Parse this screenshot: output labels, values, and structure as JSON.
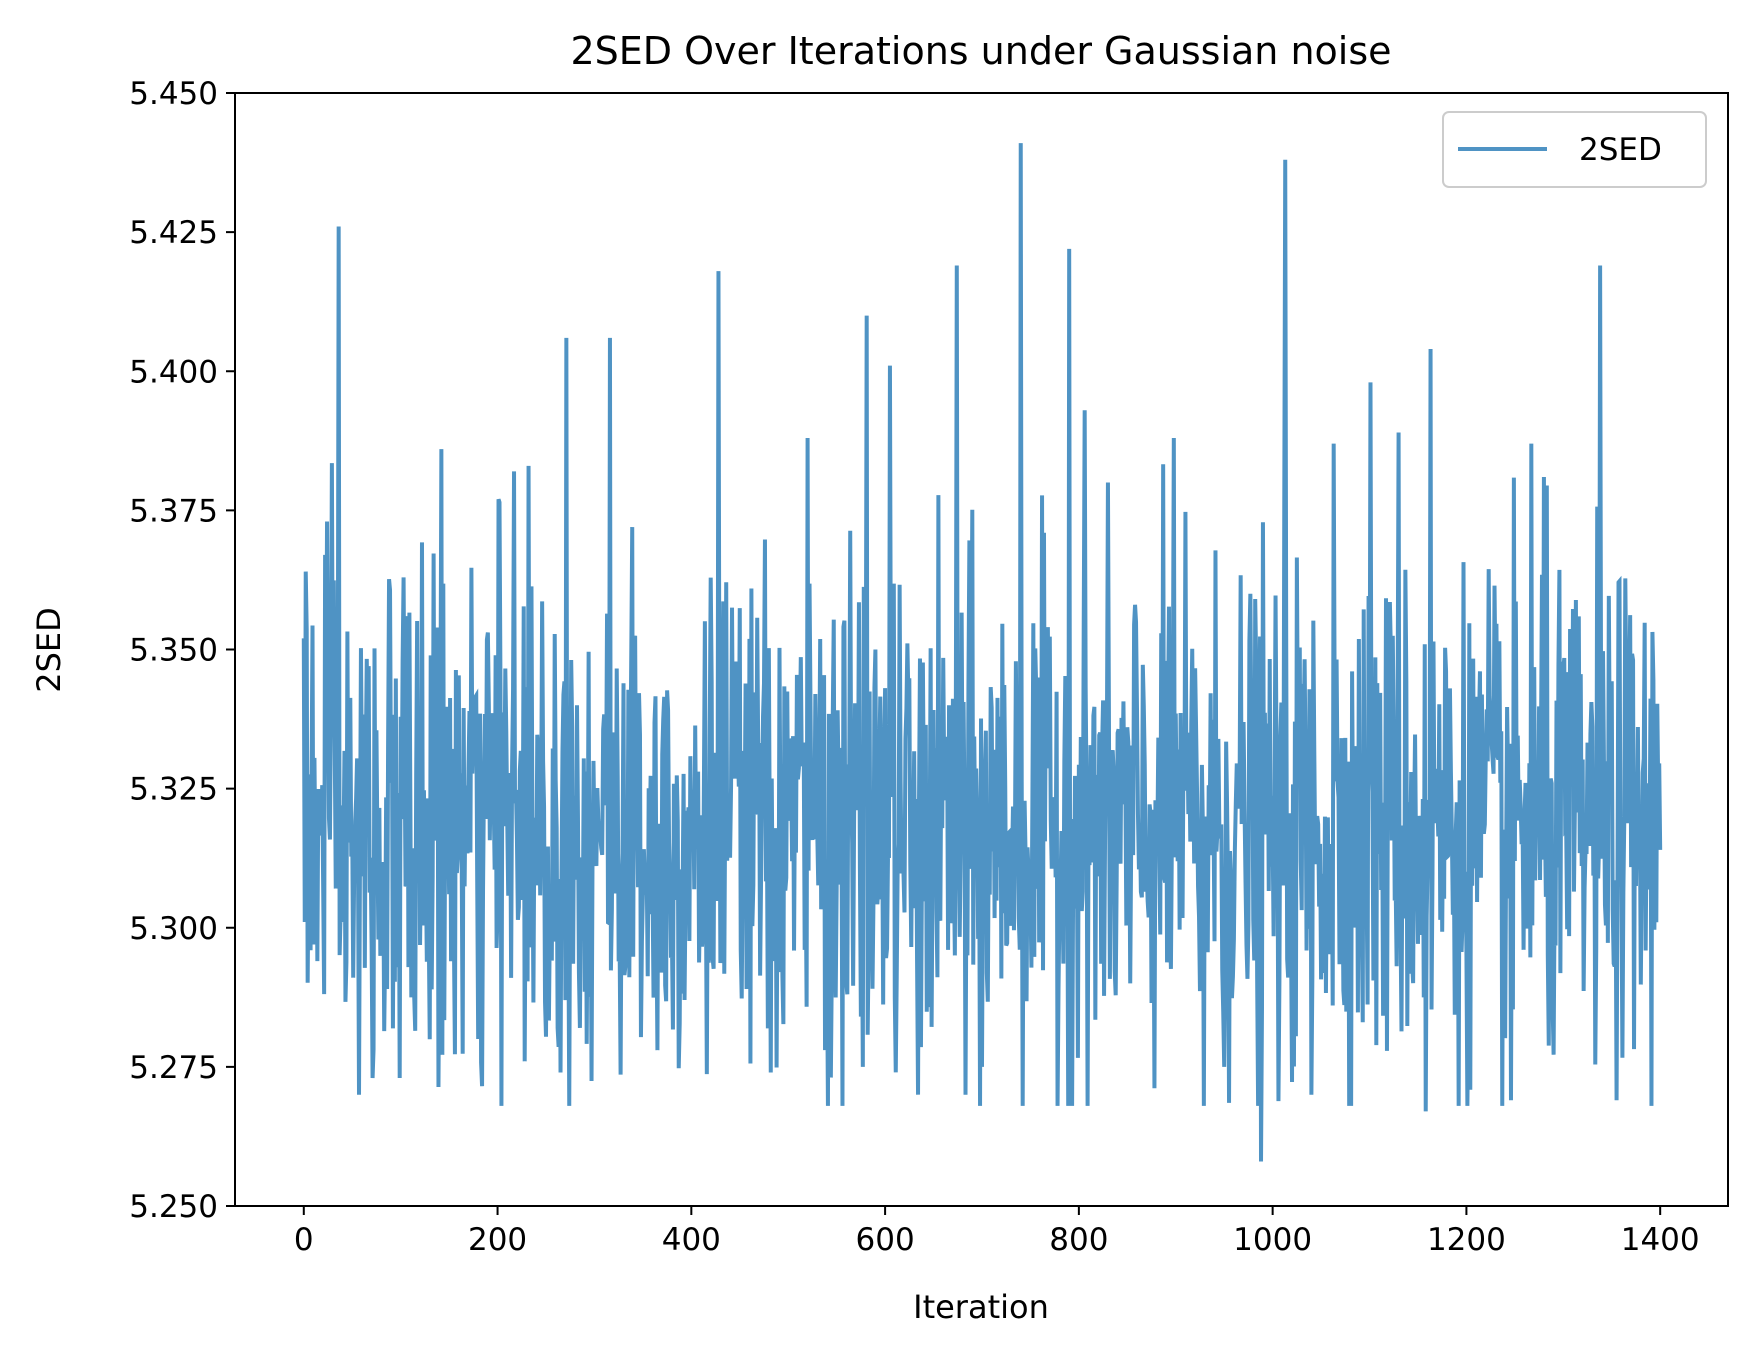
{
  "chart_data": {
    "type": "line",
    "title": "2SED Over Iterations under Gaussian noise",
    "xlabel": "Iteration",
    "ylabel": "2SED",
    "xlim": [
      -71,
      1470
    ],
    "ylim": [
      5.25,
      5.45
    ],
    "xticks": [
      0,
      200,
      400,
      600,
      800,
      1000,
      1200,
      1400
    ],
    "xtick_labels": [
      "0",
      "200",
      "400",
      "600",
      "800",
      "1000",
      "1200",
      "1400"
    ],
    "yticks": [
      5.25,
      5.275,
      5.3,
      5.325,
      5.35,
      5.375,
      5.4,
      5.425,
      5.45
    ],
    "ytick_labels": [
      "5.250",
      "5.275",
      "5.300",
      "5.325",
      "5.350",
      "5.375",
      "5.400",
      "5.425",
      "5.450"
    ],
    "grid": false,
    "legend": {
      "position": "top-right",
      "entries": [
        "2SED"
      ]
    },
    "series": [
      {
        "name": "2SED",
        "color": "#4f93c4",
        "n_points": 1401,
        "mean": 5.318,
        "std": 0.022,
        "min": 5.258,
        "max": 5.441,
        "peaks": [
          {
            "x": 0,
            "y": 5.352
          },
          {
            "x": 2,
            "y": 5.364
          },
          {
            "x": 5,
            "y": 5.313
          },
          {
            "x": 10,
            "y": 5.297
          },
          {
            "x": 14,
            "y": 5.294
          },
          {
            "x": 22,
            "y": 5.367
          },
          {
            "x": 24,
            "y": 5.373
          },
          {
            "x": 36,
            "y": 5.426
          },
          {
            "x": 40,
            "y": 5.301
          },
          {
            "x": 57,
            "y": 5.27
          },
          {
            "x": 71,
            "y": 5.273
          },
          {
            "x": 86,
            "y": 5.289
          },
          {
            "x": 99,
            "y": 5.273
          },
          {
            "x": 107,
            "y": 5.356
          },
          {
            "x": 142,
            "y": 5.386
          },
          {
            "x": 180,
            "y": 5.28
          },
          {
            "x": 201,
            "y": 5.377
          },
          {
            "x": 217,
            "y": 5.382
          },
          {
            "x": 228,
            "y": 5.276
          },
          {
            "x": 232,
            "y": 5.383
          },
          {
            "x": 262,
            "y": 5.282
          },
          {
            "x": 265,
            "y": 5.274
          },
          {
            "x": 271,
            "y": 5.406
          },
          {
            "x": 285,
            "y": 5.282
          },
          {
            "x": 316,
            "y": 5.406
          },
          {
            "x": 339,
            "y": 5.372
          },
          {
            "x": 365,
            "y": 5.278
          },
          {
            "x": 428,
            "y": 5.418
          },
          {
            "x": 457,
            "y": 5.289
          },
          {
            "x": 482,
            "y": 5.274
          },
          {
            "x": 520,
            "y": 5.388
          },
          {
            "x": 538,
            "y": 5.278
          },
          {
            "x": 577,
            "y": 5.275
          },
          {
            "x": 581,
            "y": 5.41
          },
          {
            "x": 605,
            "y": 5.401
          },
          {
            "x": 634,
            "y": 5.27
          },
          {
            "x": 674,
            "y": 5.419
          },
          {
            "x": 683,
            "y": 5.27
          },
          {
            "x": 700,
            "y": 5.275
          },
          {
            "x": 740,
            "y": 5.441
          },
          {
            "x": 790,
            "y": 5.422
          },
          {
            "x": 806,
            "y": 5.393
          },
          {
            "x": 830,
            "y": 5.38
          },
          {
            "x": 853,
            "y": 5.29
          },
          {
            "x": 898,
            "y": 5.388
          },
          {
            "x": 929,
            "y": 5.268
          },
          {
            "x": 950,
            "y": 5.275
          },
          {
            "x": 988,
            "y": 5.258
          },
          {
            "x": 1013,
            "y": 5.438
          },
          {
            "x": 1040,
            "y": 5.27
          },
          {
            "x": 1063,
            "y": 5.387
          },
          {
            "x": 1101,
            "y": 5.398
          },
          {
            "x": 1130,
            "y": 5.389
          },
          {
            "x": 1158,
            "y": 5.267
          },
          {
            "x": 1163,
            "y": 5.404
          },
          {
            "x": 1246,
            "y": 5.269
          },
          {
            "x": 1267,
            "y": 5.387
          },
          {
            "x": 1280,
            "y": 5.381
          },
          {
            "x": 1338,
            "y": 5.419
          },
          {
            "x": 1355,
            "y": 5.269
          },
          {
            "x": 1400,
            "y": 5.314
          }
        ]
      }
    ]
  }
}
